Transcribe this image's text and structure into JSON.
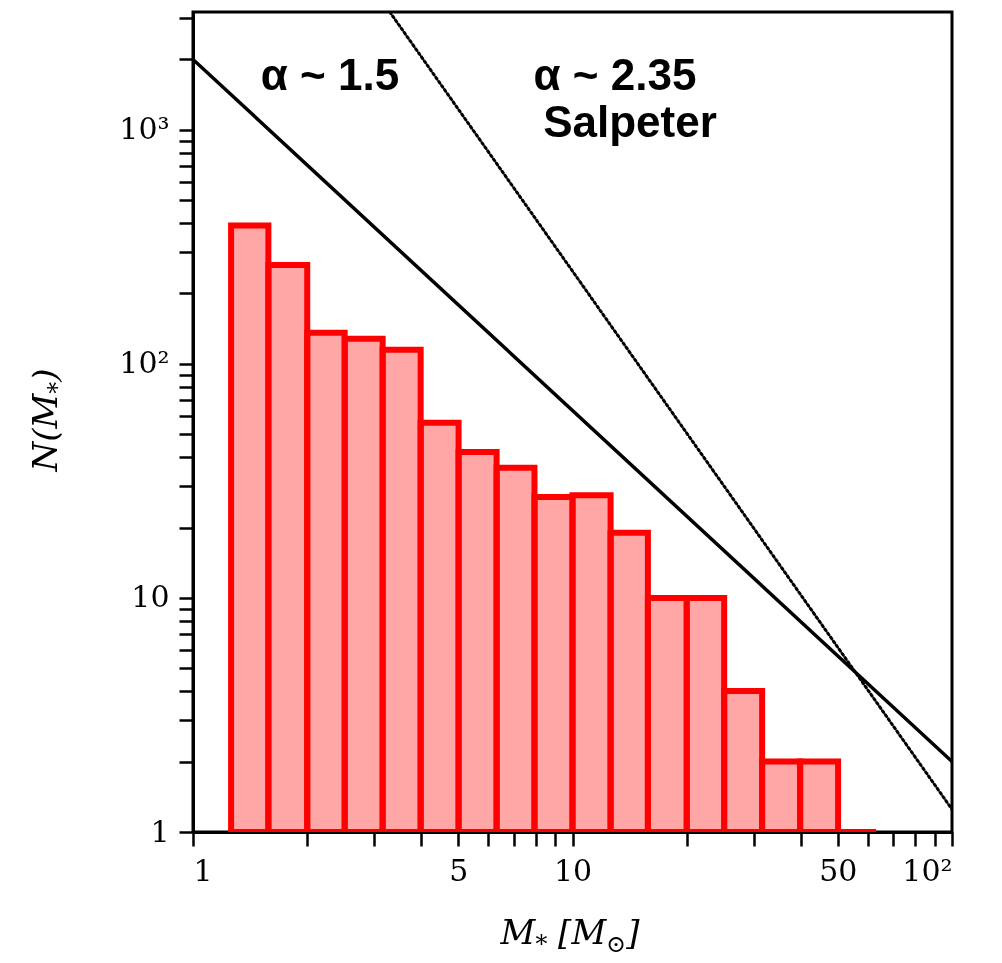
{
  "chart_data": {
    "type": "histogram",
    "xlabel": "M$_{*}$ [M$_{⊙}$]",
    "ylabel": "N(M$_{*}$)",
    "log": "xy",
    "bins": [
      1.26,
      1.58,
      2,
      2.51,
      3.16,
      3.98,
      5.01,
      6.31,
      7.94,
      10,
      12.6,
      15.8,
      20,
      25.1,
      31.6,
      39.8,
      50.1,
      63.1
    ],
    "values": [
      390,
      265,
      136,
      128,
      115,
      56,
      42,
      36,
      27,
      27.5,
      19,
      10,
      10,
      4,
      2,
      2,
      1
    ],
    "color": "#ff0000",
    "series": [
      {
        "type": "line",
        "color": "#000000",
        "line_style": "solid",
        "x": [
          1,
          100
        ],
        "values": [
          2000,
          2
        ]
      },
      {
        "type": "line",
        "color": "#000000",
        "line_style": "dotted",
        "x": [
          3.3,
          100
        ],
        "values": [
          3190,
          1.25
        ]
      }
    ],
    "xlim": [
      1,
      100
    ],
    "ylim": [
      1,
      3190
    ],
    "xticks": [
      1,
      {
        "value": 2,
        "label": null
      },
      {
        "value": 3,
        "label": null
      },
      {
        "value": 4,
        "label": null
      },
      5,
      {
        "value": 6,
        "label": null
      },
      {
        "value": 7,
        "label": null
      },
      {
        "value": 8,
        "label": null
      },
      {
        "value": 9,
        "label": null
      },
      10,
      {
        "value": 20,
        "label": null
      },
      {
        "value": 30,
        "label": null
      },
      {
        "value": 40,
        "label": null
      },
      50,
      {
        "value": 60,
        "label": null
      },
      {
        "value": 70,
        "label": null
      },
      {
        "value": 80,
        "label": null
      },
      {
        "value": 90,
        "label": null
      },
      {
        "value": 100,
        "label": "10²"
      }
    ],
    "yticks": [
      1,
      {
        "value": 2,
        "label": null
      },
      {
        "value": 3,
        "label": null
      },
      {
        "value": 4,
        "label": null
      },
      {
        "value": 5,
        "label": null
      },
      {
        "value": 6,
        "label": null
      },
      {
        "value": 7,
        "label": null
      },
      {
        "value": 8,
        "label": null
      },
      {
        "value": 9,
        "label": null
      },
      10,
      {
        "value": 20,
        "label": null
      },
      {
        "value": 30,
        "label": null
      },
      {
        "value": 40,
        "label": null
      },
      {
        "value": 50,
        "label": null
      },
      {
        "value": 60,
        "label": null
      },
      {
        "value": 70,
        "label": null
      },
      {
        "value": 80,
        "label": null
      },
      {
        "value": 90,
        "label": null
      },
      {
        "value": 100,
        "label": "10²"
      },
      {
        "value": 200,
        "label": null
      },
      {
        "value": 300,
        "label": null
      },
      {
        "value": 400,
        "label": null
      },
      {
        "value": 500,
        "label": null
      },
      {
        "value": 600,
        "label": null
      },
      {
        "value": 700,
        "label": null
      },
      {
        "value": 800,
        "label": null
      },
      {
        "value": 900,
        "label": null
      },
      {
        "value": 1000,
        "label": "10³"
      },
      {
        "value": 2000,
        "label": null
      },
      {
        "value": 3000,
        "label": null
      }
    ],
    "annotations": [
      "α ~ 1.5",
      "α ~ 2.35",
      "Salpeter"
    ]
  }
}
